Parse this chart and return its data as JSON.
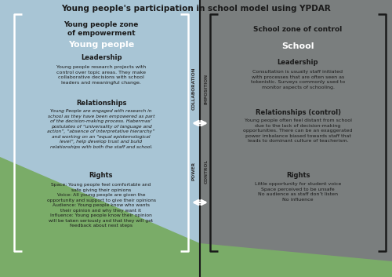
{
  "title": "Young people's participation in school model using YPDAR",
  "left_zone_title": "Young people zone\nof empowerment",
  "left_subheading": "Young people",
  "right_zone_title": "School zone of control",
  "right_subheading": "School",
  "left_leadership_heading": "Leadership",
  "left_leadership_body": "Young people research projects with\ncontrol over topic areas. They make\ncollaborative decisions with school\nleaders and meaningful change.",
  "left_relationships_heading": "Relationships",
  "left_relationships_body": "Young People are engaged with research in\nschool as they have been empowered as part\nof the decision-making process. Habermas’\npostulates of “universality of language and\naction”, “absence of interpretative hierarchy”\nand working on an “equal epistemological\nlevel”, help develop trust and build\nrelationships with both the staff and school.",
  "left_rights_heading": "Rights",
  "right_leadership_heading": "Leadership",
  "right_leadership_body": "Consultation is usually staff initiated\nwith processes that are often seen as\ntokenistic. Surveys commonly used to\nmonitor aspects of schooling.",
  "right_relationships_heading": "Relationships (control)",
  "right_relationships_body": "Young people often feel distant from school\ndue to the lack of decision-making\nopportunities. There can be an exaggerated\npower imbalance biased towards staff that\nleads to dominant culture of teacherism.",
  "right_rights_heading": "Rights",
  "label_collab": "COLLABORATION",
  "label_impos": "IMPOSITION",
  "label_power": "POWER",
  "label_control": "CONTROL",
  "bg_blue": "#a8c5d5",
  "bg_green": "#7aac68",
  "bg_gray": "#7a7e7e",
  "bracket_white": "#ffffff",
  "bracket_dark": "#1a1a1a",
  "divider_color": "#1a1a1a",
  "title_color": "#1a1a1a",
  "left_zone_title_color": "#1a1a1a",
  "left_sub_color": "#ffffff",
  "heading_color": "#1a1a1a",
  "body_color": "#1a1a1a",
  "label_color": "#333333",
  "arrow_color": "#ffffff"
}
